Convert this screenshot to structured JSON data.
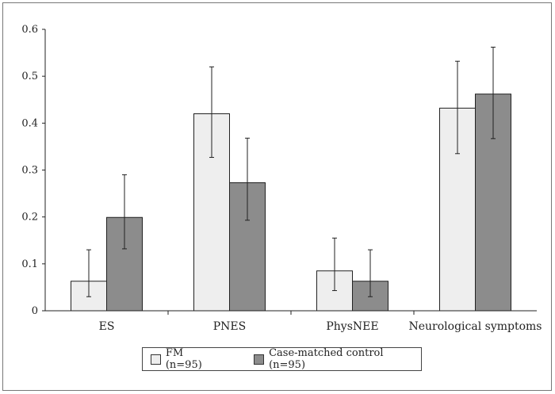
{
  "chart_data": {
    "type": "bar",
    "categories": [
      "ES",
      "PNES",
      "PhysNEE",
      "Neurological symptoms"
    ],
    "series": [
      {
        "name": "FM (n=95)",
        "values": [
          0.063,
          0.42,
          0.085,
          0.432
        ],
        "err_low": [
          0.03,
          0.327,
          0.043,
          0.335
        ],
        "err_high": [
          0.13,
          0.52,
          0.155,
          0.532
        ],
        "color": "#eeeeee"
      },
      {
        "name": "Case-matched control (n=95)",
        "values": [
          0.199,
          0.273,
          0.063,
          0.462
        ],
        "err_low": [
          0.132,
          0.193,
          0.03,
          0.367
        ],
        "err_high": [
          0.29,
          0.368,
          0.13,
          0.562
        ],
        "color": "#8c8c8c"
      }
    ],
    "ylim": [
      0,
      0.6
    ],
    "yticks": [
      "0",
      "0.1",
      "0.2",
      "0.3",
      "0.4",
      "0.5",
      "0.6"
    ],
    "grid": false,
    "legend_position": "bottom",
    "title": "",
    "xlabel": "",
    "ylabel": ""
  }
}
